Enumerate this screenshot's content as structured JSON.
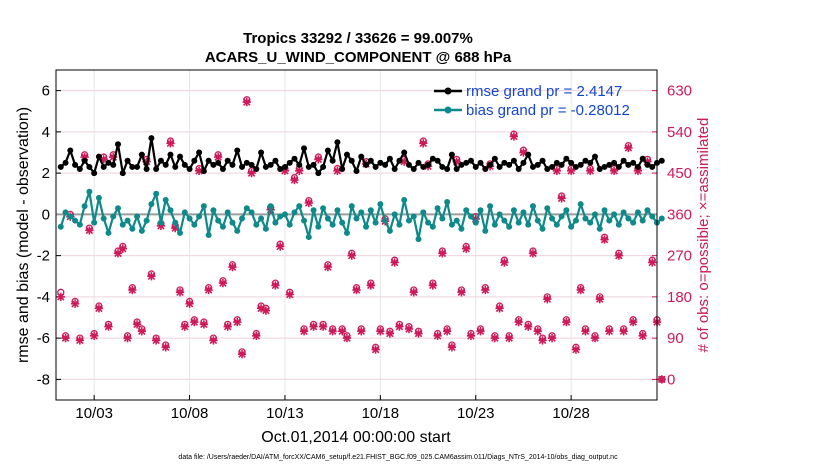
{
  "chart_data": {
    "type": "line",
    "title": "Tropics 33292 / 33626 = 99.007%",
    "subtitle": "ACARS_U_WIND_COMPONENT @ 688 hPa",
    "ylabel": "rmse and bias (model - observation)",
    "ylabel_right": "# of obs: o=possible; ×=assimilated",
    "xlabel": "Oct.01,2014 00:00:00 start",
    "footnote": "data file: /Users/raeder/DAI/ATM_forcXX/CAM6_setup/f.e21.FHIST_BGC.f09_025.CAM6assim.011/Diags_NTrS_2014-10/obs_diag_output.nc",
    "xlim": [
      1,
      32.5
    ],
    "ylim": [
      -9,
      7
    ],
    "ylim_right": [
      -45,
      675
    ],
    "x_ticks": [
      3,
      8,
      13,
      18,
      23,
      28
    ],
    "x_tick_labels": [
      "10/03",
      "10/08",
      "10/13",
      "10/18",
      "10/23",
      "10/28"
    ],
    "y_ticks": [
      -8,
      -6,
      -4,
      -2,
      0,
      2,
      4,
      6
    ],
    "y_tick_labels": [
      "-8",
      "-6",
      "-4",
      "-2",
      "0",
      "2",
      "4",
      "6"
    ],
    "y_ticks_right": [
      0,
      90,
      180,
      270,
      360,
      450,
      540,
      630
    ],
    "y_tick_labels_right": [
      "0",
      "90",
      "180",
      "270",
      "360",
      "450",
      "540",
      "630"
    ],
    "grid": true,
    "legend_position": "top-right",
    "series": [
      {
        "name": "rmse grand pr = 2.4147",
        "color": "#000000",
        "values": [
          2.3,
          2.5,
          3.1,
          2.4,
          2.2,
          2.6,
          2.3,
          2.0,
          2.8,
          2.3,
          2.5,
          2.4,
          3.4,
          2.0,
          2.6,
          2.3,
          2.3,
          2.9,
          2.2,
          3.7,
          2.2,
          2.6,
          2.4,
          2.9,
          2.3,
          2.8,
          2.4,
          2.2,
          2.6,
          3.0,
          2.1,
          2.6,
          2.4,
          2.5,
          2.2,
          2.6,
          2.4,
          3.1,
          2.3,
          2.5,
          2.4,
          2.2,
          3.0,
          2.3,
          2.4,
          2.6,
          2.2,
          2.3,
          2.5,
          2.7,
          2.4,
          3.2,
          2.3,
          2.4,
          2.0,
          2.3,
          3.1,
          2.6,
          3.5,
          2.2,
          2.9,
          2.6,
          2.1,
          2.8,
          2.4,
          2.6,
          2.3,
          2.5,
          2.4,
          2.7,
          2.2,
          2.6,
          3.0,
          2.4,
          2.2,
          2.5,
          2.3,
          2.4,
          2.7,
          2.6,
          2.3,
          2.2,
          2.9,
          2.2,
          2.4,
          2.5,
          2.6,
          2.3,
          2.5,
          2.2,
          2.4,
          2.7,
          2.3,
          2.5,
          2.4,
          2.6,
          2.2,
          2.5,
          2.9,
          2.3,
          2.4,
          2.6,
          2.2,
          2.3,
          2.5,
          2.4,
          2.7,
          2.5,
          2.3,
          2.4,
          2.6,
          2.5,
          2.8,
          2.2,
          2.3,
          2.4,
          2.5,
          2.3,
          2.6,
          2.4,
          2.5,
          2.3,
          2.7,
          2.4,
          2.3,
          2.5,
          2.6
        ]
      },
      {
        "name": "bias grand pr = -0.28012",
        "color": "#0e8a8a",
        "values": [
          -0.6,
          0.1,
          -0.1,
          -0.3,
          -0.5,
          0.4,
          1.1,
          -0.4,
          0.8,
          -0.2,
          -0.9,
          -0.1,
          0.3,
          -0.5,
          -0.3,
          -0.7,
          -0.1,
          -0.8,
          -0.3,
          0.5,
          1.0,
          -0.4,
          0.7,
          0.2,
          -0.4,
          -0.9,
          0.1,
          -0.2,
          -0.5,
          -0.1,
          0.4,
          -1.0,
          0.2,
          -0.3,
          -0.6,
          0.1,
          -0.4,
          -0.8,
          -0.2,
          0.3,
          0.1,
          -0.5,
          -0.2,
          -0.7,
          0.4,
          -0.4,
          -0.1,
          0.0,
          -0.5,
          0.1,
          0.4,
          -0.3,
          -1.1,
          0.2,
          -0.6,
          0.3,
          -0.2,
          -0.5,
          0.2,
          -0.4,
          -0.9,
          0.4,
          -0.2,
          0.1,
          -0.6,
          0.2,
          -0.4,
          0.5,
          -0.3,
          -0.8,
          0.0,
          -0.5,
          0.7,
          -0.3,
          -0.1,
          -1.2,
          0.1,
          -0.4,
          -0.6,
          0.3,
          -0.2,
          0.6,
          -0.5,
          -0.3,
          -0.7,
          0.2,
          -0.1,
          -0.4,
          0.2,
          -0.8,
          0.4,
          -0.5,
          0.0,
          -0.3,
          -0.6,
          0.2,
          -0.4,
          0.1,
          -0.5,
          0.4,
          -0.3,
          -0.7,
          0.3,
          -0.2,
          -0.5,
          -0.1,
          0.2,
          -0.6,
          -0.3,
          0.5,
          -0.2,
          -0.4,
          0.0,
          -0.7,
          0.2,
          -0.3,
          0.0,
          -0.5,
          0.1,
          -0.2,
          -0.4,
          0.1,
          -0.3,
          0.2,
          -0.1,
          -0.4,
          -0.2
        ]
      },
      {
        "name": "# of obs possible",
        "color": "#cc1a5a",
        "values": [
          190,
          95,
          360,
          170,
          90,
          490,
          330,
          100,
          160,
          485,
          120,
          490,
          280,
          290,
          95,
          200,
          125,
          110,
          480,
          230,
          90,
          340,
          75,
          520,
          335,
          195,
          120,
          170,
          130,
          460,
          125,
          200,
          90,
          490,
          215,
          120,
          250,
          130,
          60,
          610,
          455,
          100,
          160,
          155,
          375,
          210,
          295,
          460,
          190,
          440,
          460,
          110,
          390,
          120,
          485,
          120,
          250,
          110,
          460,
          110,
          95,
          275,
          200,
          110,
          475,
          210,
          70,
          110,
          350,
          105,
          260,
          120,
          480,
          115,
          195,
          105,
          520,
          470,
          210,
          100,
          280,
          110,
          75,
          480,
          195,
          290,
          100,
          355,
          110,
          200,
          470,
          95,
          160,
          260,
          95,
          535,
          130,
          500,
          120,
          280,
          110,
          90,
          180,
          95,
          460,
          400,
          130,
          460,
          70,
          200,
          110,
          460,
          95,
          180,
          310,
          110,
          460,
          275,
          110,
          510,
          130,
          460,
          100,
          480,
          260,
          130,
          0
        ]
      },
      {
        "name": "# of obs assimilated",
        "color": "#cc1a5a",
        "values": [
          180,
          90,
          355,
          165,
          85,
          485,
          325,
          95,
          155,
          480,
          115,
          485,
          275,
          285,
          90,
          195,
          120,
          105,
          475,
          225,
          85,
          335,
          70,
          515,
          330,
          190,
          115,
          165,
          125,
          455,
          120,
          195,
          85,
          485,
          210,
          115,
          245,
          125,
          55,
          605,
          450,
          95,
          155,
          150,
          370,
          205,
          290,
          455,
          185,
          435,
          455,
          105,
          385,
          115,
          480,
          115,
          245,
          105,
          455,
          105,
          90,
          270,
          195,
          105,
          470,
          205,
          65,
          105,
          345,
          100,
          255,
          115,
          475,
          110,
          190,
          100,
          515,
          465,
          205,
          95,
          275,
          105,
          70,
          475,
          190,
          285,
          95,
          350,
          105,
          195,
          465,
          90,
          155,
          255,
          90,
          530,
          125,
          495,
          115,
          275,
          105,
          85,
          175,
          90,
          455,
          395,
          125,
          455,
          65,
          195,
          105,
          455,
          90,
          175,
          305,
          105,
          455,
          270,
          105,
          505,
          125,
          455,
          95,
          475,
          255,
          125,
          0
        ]
      }
    ]
  }
}
